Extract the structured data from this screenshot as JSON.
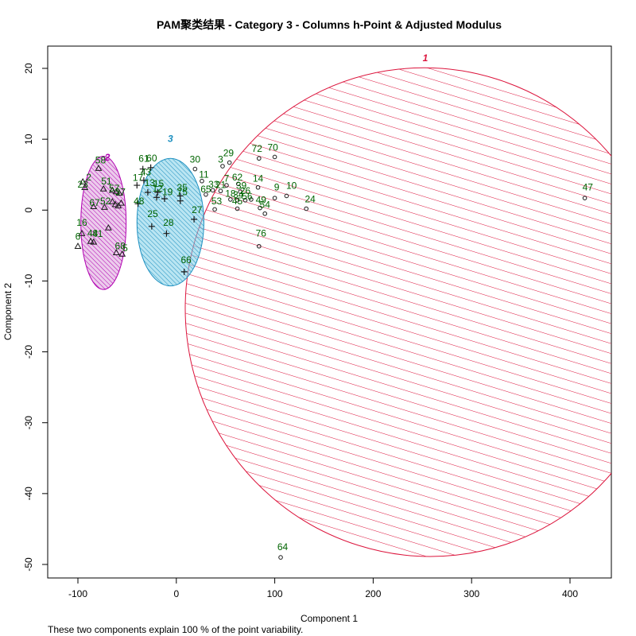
{
  "chart_data": {
    "type": "scatter",
    "title": "PAM聚类结果 - Category  3  - Columns  h-Point  &  Adjusted Modulus",
    "xlabel": "Component 1",
    "ylabel": "Component 2",
    "subtitle": "These two components explain 100 % of the point variability.",
    "xlim": [
      -133,
      420
    ],
    "ylim": [
      -52,
      23
    ],
    "xticks": [
      -100,
      0,
      100,
      200,
      300,
      400
    ],
    "yticks": [
      -50,
      -40,
      -30,
      -20,
      -10,
      0,
      10,
      20
    ],
    "grid": false,
    "colors": {
      "point_label": "#006400",
      "cluster1": "#dc143c",
      "cluster2": "#b000b0",
      "cluster3": "#1e90c0",
      "cluster2_fill": "#dda0dd",
      "cluster3_fill": "#7fd0e8"
    },
    "clusters": [
      {
        "label": "1",
        "symbol": "circle",
        "color": "#dc143c",
        "ellipse": {
          "cx": 255,
          "cy": -14.4,
          "rx_data": 245,
          "ry_data": 34.6,
          "angle_deg": -28
        },
        "points": [
          {
            "id": "30",
            "x": 19,
            "y": 5.8
          },
          {
            "id": "3",
            "x": 47,
            "y": 6.2
          },
          {
            "id": "29",
            "x": 54,
            "y": 6.7
          },
          {
            "id": "72",
            "x": 84,
            "y": 7.3
          },
          {
            "id": "70",
            "x": 100,
            "y": 7.5
          },
          {
            "id": "11",
            "x": 26,
            "y": 4.1
          },
          {
            "id": "71",
            "x": 51,
            "y": 3.5
          },
          {
            "id": "62",
            "x": 63,
            "y": 3.7
          },
          {
            "id": "14",
            "x": 83,
            "y": 3.2
          },
          {
            "id": "33",
            "x": 37,
            "y": 2.8
          },
          {
            "id": "21",
            "x": 45,
            "y": 2.7
          },
          {
            "id": "39",
            "x": 65,
            "y": 2.6
          },
          {
            "id": "65",
            "x": 30,
            "y": 2.2
          },
          {
            "id": "18",
            "x": 55,
            "y": 1.5
          },
          {
            "id": "34",
            "x": 62,
            "y": 1.4
          },
          {
            "id": "26",
            "x": 70,
            "y": 1.4
          },
          {
            "id": "56",
            "x": 76,
            "y": 1.5
          },
          {
            "id": "9",
            "x": 100,
            "y": 1.7
          },
          {
            "id": "10",
            "x": 112,
            "y": 2.0
          },
          {
            "id": "24",
            "x": 132,
            "y": 0.2
          },
          {
            "id": "47",
            "x": 415,
            "y": 1.7
          },
          {
            "id": "53",
            "x": 39,
            "y": 0.1
          },
          {
            "id": "45",
            "x": 62,
            "y": 0.2
          },
          {
            "id": "49",
            "x": 85,
            "y": 0.3
          },
          {
            "id": "54",
            "x": 90,
            "y": -0.5
          },
          {
            "id": "76",
            "x": 84,
            "y": -5.1
          },
          {
            "id": "64",
            "x": 106,
            "y": -49.0
          }
        ]
      },
      {
        "label": "2",
        "symbol": "triangle",
        "color": "#b000b0",
        "ellipse": {
          "cx": -74,
          "cy": -1.8,
          "rx_data": 23,
          "ry_data": 9.4,
          "angle_deg": 0
        },
        "points": [
          {
            "id": "58",
            "x": -79,
            "y": 5.9
          },
          {
            "id": "23",
            "x": -95,
            "y": 4.0
          },
          {
            "id": "13",
            "x": -93,
            "y": 3.2
          },
          {
            "id": "51",
            "x": -74,
            "y": 3.0
          },
          {
            "id": "57",
            "x": -65,
            "y": 2.8
          },
          {
            "id": "37",
            "x": -61,
            "y": 2.6
          },
          {
            "id": "55",
            "x": -58,
            "y": 2.4
          },
          {
            "id": "67",
            "x": -84,
            "y": 0.5
          },
          {
            "id": "52",
            "x": -73,
            "y": 0.4
          },
          {
            "id": "40",
            "x": -65,
            "y": 1.2
          },
          {
            "id": "8",
            "x": -62,
            "y": 0.8
          },
          {
            "id": "36",
            "x": -59,
            "y": 0.6
          },
          {
            "id": "20",
            "x": -56,
            "y": 1.0
          },
          {
            "id": "16",
            "x": -96,
            "y": -3.3
          },
          {
            "id": "35b",
            "x": -69,
            "y": -2.5
          },
          {
            "id": "48",
            "x": -87,
            "y": -4.4
          },
          {
            "id": "41",
            "x": -84,
            "y": -4.5
          },
          {
            "id": "6",
            "x": -100,
            "y": -5.1
          },
          {
            "id": "68",
            "x": -61,
            "y": -6.0
          },
          {
            "id": "5",
            "x": -55,
            "y": -6.2
          }
        ]
      },
      {
        "label": "3",
        "symbol": "plus",
        "color": "#1e90c0",
        "ellipse": {
          "cx": -6,
          "cy": -1.7,
          "rx_data": 34,
          "ry_data": 9.0,
          "angle_deg": 0
        },
        "points": [
          {
            "id": "61",
            "x": -34,
            "y": 5.8
          },
          {
            "id": "60",
            "x": -26,
            "y": 6.0
          },
          {
            "id": "43",
            "x": -33,
            "y": 4.2
          },
          {
            "id": "17",
            "x": -40,
            "y": 3.5
          },
          {
            "id": "13b",
            "x": -29,
            "y": 2.5
          },
          {
            "id": "15",
            "x": -19,
            "y": 2.5
          },
          {
            "id": "12",
            "x": -20,
            "y": 1.8
          },
          {
            "id": "19",
            "x": -12,
            "y": 1.6
          },
          {
            "id": "48b",
            "x": -39,
            "y": 0.9
          },
          {
            "id": "35",
            "x": 4,
            "y": 2.0
          },
          {
            "id": "75",
            "x": 4,
            "y": 1.3
          },
          {
            "id": "27",
            "x": 18,
            "y": -1.3
          },
          {
            "id": "25",
            "x": -25,
            "y": -2.3
          },
          {
            "id": "28",
            "x": -10,
            "y": -3.3
          },
          {
            "id": "66",
            "x": 8,
            "y": -8.7
          }
        ]
      }
    ],
    "point_labels": [
      {
        "text": "30",
        "x": 19,
        "y": 6.7
      },
      {
        "text": "3",
        "x": 45,
        "y": 6.7
      },
      {
        "text": "29",
        "x": 53,
        "y": 7.6
      },
      {
        "text": "72",
        "x": 82,
        "y": 8.2
      },
      {
        "text": "70",
        "x": 98,
        "y": 8.4
      },
      {
        "text": "11",
        "x": 28,
        "y": 4.6
      },
      {
        "text": "7",
        "x": 51,
        "y": 4.0
      },
      {
        "text": "62",
        "x": 62,
        "y": 4.2
      },
      {
        "text": "14",
        "x": 83,
        "y": 4.0
      },
      {
        "text": "33",
        "x": 38,
        "y": 3.2
      },
      {
        "text": "21",
        "x": 45,
        "y": 3.1
      },
      {
        "text": "39",
        "x": 66,
        "y": 3.0
      },
      {
        "text": "65",
        "x": 30,
        "y": 2.5
      },
      {
        "text": "18",
        "x": 55,
        "y": 1.9
      },
      {
        "text": "34",
        "x": 63,
        "y": 1.7
      },
      {
        "text": "26",
        "x": 70,
        "y": 2.3
      },
      {
        "text": "56",
        "x": 72,
        "y": 1.5
      },
      {
        "text": "9",
        "x": 102,
        "y": 2.8
      },
      {
        "text": "10",
        "x": 117,
        "y": 3.0
      },
      {
        "text": "24",
        "x": 136,
        "y": 1.1
      },
      {
        "text": "47",
        "x": 418,
        "y": 2.8
      },
      {
        "text": "53",
        "x": 41,
        "y": 0.8
      },
      {
        "text": "45",
        "x": 62,
        "y": 0.8
      },
      {
        "text": "49",
        "x": 86,
        "y": 1.0
      },
      {
        "text": "54",
        "x": 90,
        "y": 0.3
      },
      {
        "text": "76",
        "x": 86,
        "y": -3.7
      },
      {
        "text": "64",
        "x": 108,
        "y": -48.0
      },
      {
        "text": "58",
        "x": -77,
        "y": 6.6
      },
      {
        "text": "2",
        "x": -89,
        "y": 4.2
      },
      {
        "text": "23",
        "x": -95,
        "y": 3.2
      },
      {
        "text": "51",
        "x": -71,
        "y": 3.6
      },
      {
        "text": "57",
        "x": -63,
        "y": 2.6
      },
      {
        "text": "37",
        "x": -57,
        "y": 2.1
      },
      {
        "text": "67",
        "x": -83,
        "y": 0.6
      },
      {
        "text": "52",
        "x": -72,
        "y": 0.8
      },
      {
        "text": "16",
        "x": -96,
        "y": -2.2
      },
      {
        "text": "48",
        "x": -85,
        "y": -3.7
      },
      {
        "text": "41",
        "x": -80,
        "y": -3.8
      },
      {
        "text": "6",
        "x": -100,
        "y": -4.2
      },
      {
        "text": "68",
        "x": -57,
        "y": -5.5
      },
      {
        "text": "5",
        "x": -52,
        "y": -5.8
      },
      {
        "text": "61",
        "x": -33,
        "y": 6.8
      },
      {
        "text": "60",
        "x": -25,
        "y": 6.9
      },
      {
        "text": "43",
        "x": -31,
        "y": 4.9
      },
      {
        "text": "17",
        "x": -39,
        "y": 4.1
      },
      {
        "text": "13",
        "x": -27,
        "y": 3.4
      },
      {
        "text": "15",
        "x": -18,
        "y": 3.3
      },
      {
        "text": "12",
        "x": -19,
        "y": 2.6
      },
      {
        "text": "19",
        "x": -9,
        "y": 2.1
      },
      {
        "text": "48",
        "x": -38,
        "y": 0.8
      },
      {
        "text": "35",
        "x": 6,
        "y": 2.7
      },
      {
        "text": "75",
        "x": 6,
        "y": 2.1
      },
      {
        "text": "27",
        "x": 21,
        "y": -0.4
      },
      {
        "text": "25",
        "x": -24,
        "y": -1.0
      },
      {
        "text": "28",
        "x": -8,
        "y": -2.2
      },
      {
        "text": "66",
        "x": 10,
        "y": -7.5
      }
    ],
    "cluster_labels": [
      {
        "text": "1",
        "x": 253,
        "y": 21.0,
        "color": "#dc143c"
      },
      {
        "text": "2",
        "x": -70,
        "y": 7.0,
        "color": "#b000b0"
      },
      {
        "text": "3",
        "x": -6,
        "y": 9.6,
        "color": "#1e90c0"
      }
    ]
  }
}
